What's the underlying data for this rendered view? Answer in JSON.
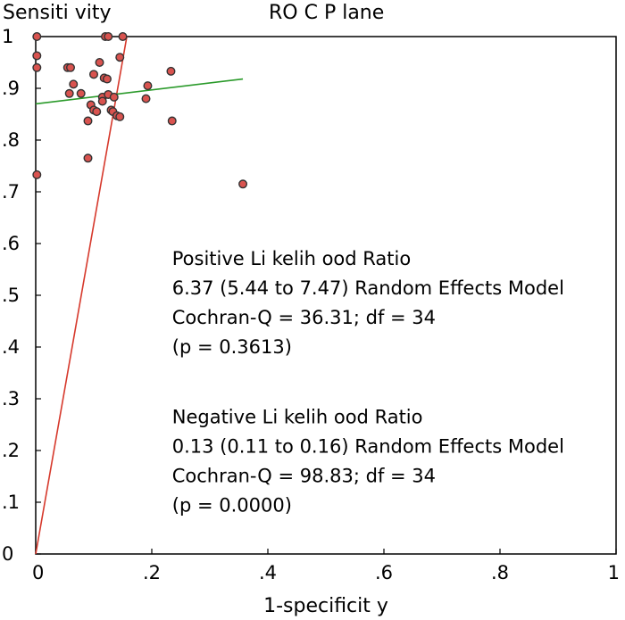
{
  "chart_data": {
    "type": "scatter",
    "title": "RO C P lane",
    "xlabel": "1-specificit y",
    "ylabel": "Sensiti vity",
    "xlim": [
      0,
      1
    ],
    "ylim": [
      0,
      1
    ],
    "x_ticks": [
      {
        "value": 0,
        "label": "0"
      },
      {
        "value": 0.2,
        "label": ".2"
      },
      {
        "value": 0.4,
        "label": ".4"
      },
      {
        "value": 0.6,
        "label": ".6"
      },
      {
        "value": 0.8,
        "label": ".8"
      },
      {
        "value": 1,
        "label": "1"
      }
    ],
    "y_ticks": [
      {
        "value": 0,
        "label": "0"
      },
      {
        "value": 0.1,
        "label": ".1"
      },
      {
        "value": 0.2,
        "label": ".2"
      },
      {
        "value": 0.3,
        "label": ".3"
      },
      {
        "value": 0.4,
        "label": ".4"
      },
      {
        "value": 0.5,
        "label": ".5"
      },
      {
        "value": 0.6,
        "label": ".6"
      },
      {
        "value": 0.7,
        "label": ".7"
      },
      {
        "value": 0.8,
        "label": ".8"
      },
      {
        "value": 0.9,
        "label": ".9"
      },
      {
        "value": 1,
        "label": "1"
      }
    ],
    "grid": false,
    "marker_color": "#d9534f",
    "marker_edge_color": "#333333",
    "points": [
      {
        "x": 0.002,
        "y": 1.0
      },
      {
        "x": 0.002,
        "y": 0.963
      },
      {
        "x": 0.002,
        "y": 0.94
      },
      {
        "x": 0.002,
        "y": 0.733
      },
      {
        "x": 0.055,
        "y": 0.94
      },
      {
        "x": 0.06,
        "y": 0.94
      },
      {
        "x": 0.058,
        "y": 0.89
      },
      {
        "x": 0.065,
        "y": 0.908
      },
      {
        "x": 0.078,
        "y": 0.89
      },
      {
        "x": 0.09,
        "y": 0.837
      },
      {
        "x": 0.09,
        "y": 0.765
      },
      {
        "x": 0.095,
        "y": 0.868
      },
      {
        "x": 0.1,
        "y": 0.858
      },
      {
        "x": 0.1,
        "y": 0.927
      },
      {
        "x": 0.105,
        "y": 0.855
      },
      {
        "x": 0.11,
        "y": 0.95
      },
      {
        "x": 0.115,
        "y": 0.883
      },
      {
        "x": 0.115,
        "y": 0.875
      },
      {
        "x": 0.118,
        "y": 0.92
      },
      {
        "x": 0.12,
        "y": 1.0
      },
      {
        "x": 0.123,
        "y": 0.918
      },
      {
        "x": 0.125,
        "y": 1.0
      },
      {
        "x": 0.125,
        "y": 0.888
      },
      {
        "x": 0.13,
        "y": 0.858
      },
      {
        "x": 0.133,
        "y": 0.855
      },
      {
        "x": 0.135,
        "y": 0.883
      },
      {
        "x": 0.14,
        "y": 0.847
      },
      {
        "x": 0.145,
        "y": 0.845
      },
      {
        "x": 0.145,
        "y": 0.96
      },
      {
        "x": 0.15,
        "y": 1.0
      },
      {
        "x": 0.19,
        "y": 0.88
      },
      {
        "x": 0.193,
        "y": 0.905
      },
      {
        "x": 0.233,
        "y": 0.933
      },
      {
        "x": 0.235,
        "y": 0.837
      },
      {
        "x": 0.357,
        "y": 0.715
      }
    ],
    "lines": [
      {
        "name": "positive-likelihood-ratio-line",
        "color": "#d6392c",
        "x": [
          0,
          0.157
        ],
        "y": [
          0,
          1.0
        ]
      },
      {
        "name": "negative-likelihood-ratio-line",
        "color": "#2a9a2a",
        "x": [
          0,
          0.357
        ],
        "y": [
          0.87,
          0.918
        ]
      }
    ],
    "annotations": [
      {
        "name": "plr-title",
        "text": "Positive Li kelih ood Ratio",
        "x": 0.235,
        "y": 0.559
      },
      {
        "name": "plr-value",
        "text": "6.37 (5.44 to 7.47) Random Effects Model",
        "x": 0.235,
        "y": 0.502
      },
      {
        "name": "plr-cochran",
        "text": "Cochran-Q = 36.31; df = 34",
        "x": 0.235,
        "y": 0.445
      },
      {
        "name": "plr-p",
        "text": " (p = 0.3613)",
        "x": 0.235,
        "y": 0.388
      },
      {
        "name": "nlr-title",
        "text": "Negative Li kelih ood Ratio",
        "x": 0.235,
        "y": 0.253
      },
      {
        "name": "nlr-value",
        "text": "0.13 (0.11 to 0.16) Random Effects Model",
        "x": 0.235,
        "y": 0.196
      },
      {
        "name": "nlr-cochran",
        "text": "Cochran-Q = 98.83; df = 34",
        "x": 0.235,
        "y": 0.139
      },
      {
        "name": "nlr-p",
        "text": " (p = 0.0000)",
        "x": 0.235,
        "y": 0.082
      }
    ]
  }
}
